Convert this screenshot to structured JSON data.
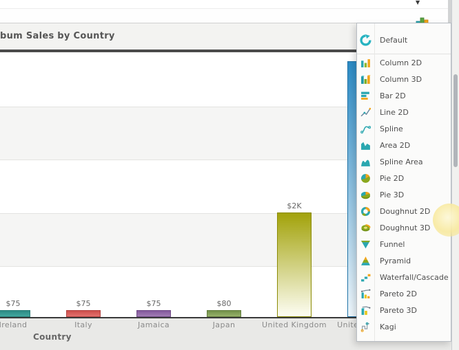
{
  "toolbar": {
    "chart_type_selector": {
      "icon": "column-chart",
      "caret": "▼"
    }
  },
  "panel": {
    "title": "bum Sales by Country"
  },
  "chart_data": {
    "type": "bar",
    "title": "bum Sales by Country",
    "xlabel": "Country",
    "ylabel": "",
    "ylim": [
      0,
      5000
    ],
    "grid": "alternating horizontal bands, gridlines every 1000",
    "legend": "none",
    "categories": [
      "Ireland",
      "Italy",
      "Jamaica",
      "Japan",
      "United Kingdom",
      "United States"
    ],
    "values": [
      75,
      75,
      75,
      80,
      2000,
      4900
    ],
    "value_labels": [
      "$75",
      "$75",
      "$75",
      "$80",
      "$2K",
      ""
    ],
    "bar_styles": [
      {
        "top": "#2f8a84",
        "bottom": "#41a79f",
        "border": "#2a7d77"
      },
      {
        "top": "#cd4f4c",
        "bottom": "#e4706d",
        "border": "#b24543"
      },
      {
        "top": "#82589c",
        "bottom": "#a27cb5",
        "border": "#714d87"
      },
      {
        "top": "#71904a",
        "bottom": "#97b269",
        "border": "#647f41"
      },
      {
        "top": "#a2a20a",
        "bottom": "#fdfdf3",
        "border": "#8b8b06"
      },
      {
        "top": "#2c8bc5",
        "bottom": "#eff7fc",
        "border": "#2273a6"
      }
    ]
  },
  "menu": {
    "items": [
      {
        "label": "Default",
        "icon": "refresh"
      },
      {
        "label": "Column 2D",
        "icon": "column2d"
      },
      {
        "label": "Column 3D",
        "icon": "column3d"
      },
      {
        "label": "Bar 2D",
        "icon": "bar2d"
      },
      {
        "label": "Line 2D",
        "icon": "line2d"
      },
      {
        "label": "Spline",
        "icon": "spline"
      },
      {
        "label": "Area 2D",
        "icon": "area2d"
      },
      {
        "label": "Spline Area",
        "icon": "splinearea"
      },
      {
        "label": "Pie 2D",
        "icon": "pie2d"
      },
      {
        "label": "Pie 3D",
        "icon": "pie3d"
      },
      {
        "label": "Doughnut 2D",
        "icon": "doughnut2d"
      },
      {
        "label": "Doughnut 3D",
        "icon": "doughnut3d"
      },
      {
        "label": "Funnel",
        "icon": "funnel"
      },
      {
        "label": "Pyramid",
        "icon": "pyramid"
      },
      {
        "label": "Waterfall/Cascade",
        "icon": "waterfall"
      },
      {
        "label": "Pareto 2D",
        "icon": "pareto2d"
      },
      {
        "label": "Pareto 3D",
        "icon": "pareto3d"
      },
      {
        "label": "Kagi",
        "icon": "kagi"
      }
    ]
  },
  "colors": {
    "accent_teal": "#2aa7b0",
    "accent_green": "#8aa81e",
    "accent_orange": "#f2a418",
    "header_border": "#4a4a4a",
    "band_grey": "#f5f5f4"
  }
}
